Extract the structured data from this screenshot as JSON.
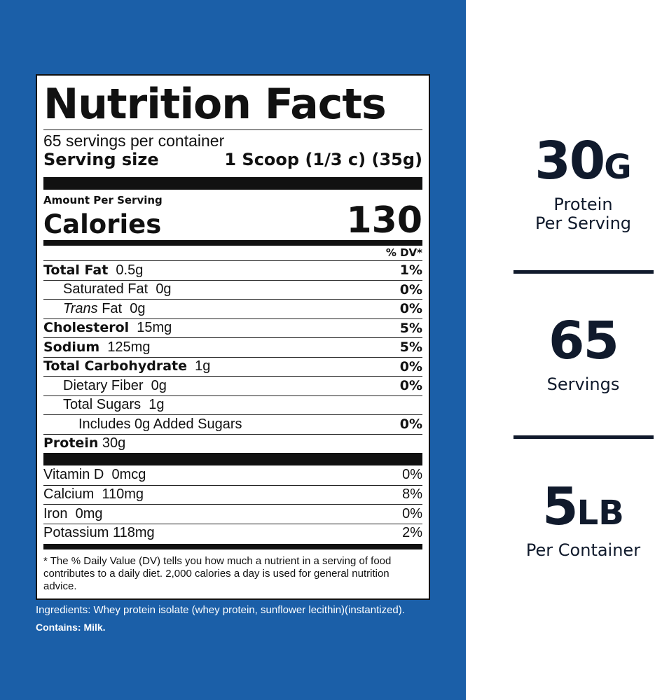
{
  "nutrition": {
    "title": "Nutrition Facts",
    "servings_per_container": "65 servings per container",
    "serving_size_label": "Serving size",
    "serving_size_value": "1 Scoop (1/3 c) (35g)",
    "amount_per_serving": "Amount Per Serving",
    "calories_label": "Calories",
    "calories_value": "130",
    "dv_header": "% DV*",
    "rows": [
      {
        "name": "Total Fat",
        "amount": "0.5g",
        "dv": "1%"
      },
      {
        "name": "Saturated Fat",
        "amount": "0g",
        "dv": "0%"
      },
      {
        "name_italic": "Trans",
        "name": "Fat",
        "amount": "0g",
        "dv": "0%"
      },
      {
        "name": "Cholesterol",
        "amount": "15mg",
        "dv": "5%"
      },
      {
        "name": "Sodium",
        "amount": "125mg",
        "dv": "5%"
      },
      {
        "name": "Total Carbohydrate",
        "amount": "1g",
        "dv": "0%"
      },
      {
        "name": "Dietary Fiber",
        "amount": "0g",
        "dv": "0%"
      },
      {
        "name": "Total Sugars",
        "amount": "1g",
        "dv": ""
      },
      {
        "name": "Includes 0g Added Sugars",
        "amount": "",
        "dv": "0%"
      },
      {
        "name": "Protein",
        "amount": "30g",
        "dv": ""
      }
    ],
    "vitamins": [
      {
        "name": "Vitamin D",
        "amount": "0mcg",
        "dv": "0%"
      },
      {
        "name": "Calcium",
        "amount": "110mg",
        "dv": "8%"
      },
      {
        "name": "Iron",
        "amount": "0mg",
        "dv": "0%"
      },
      {
        "name": "Potassium",
        "amount": "118mg",
        "dv": "2%"
      }
    ],
    "footnote": "* The % Daily Value (DV) tells you how much a nutrient in a serving of food contributes to a daily diet. 2,000 calories a day is used for general nutrition advice."
  },
  "ingredients": "Ingredients: Whey protein isolate (whey protein, sunflower lecithin)(instantized).",
  "contains": "Contains: Milk.",
  "stats": [
    {
      "value": "30",
      "unit": "G",
      "line1": "Protein",
      "line2": "Per Serving"
    },
    {
      "value": "65",
      "unit": "",
      "line1": "Servings",
      "line2": ""
    },
    {
      "value": "5",
      "unit": "LB",
      "line1": "Per Container",
      "line2": ""
    }
  ],
  "colors": {
    "panel_blue": "#1b5fa8",
    "stat_text": "#101a2c"
  }
}
